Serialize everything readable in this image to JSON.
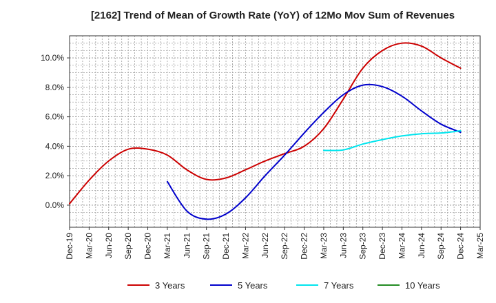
{
  "chart_data": {
    "type": "line",
    "title": "[2162]  Trend of Mean of Growth Rate (YoY) of 12Mo Mov Sum of Revenues",
    "xlabel": "",
    "ylabel": "",
    "ylim": [
      -1.5,
      11.5
    ],
    "y_ticks": [
      0,
      2,
      4,
      6,
      8,
      10
    ],
    "y_tick_labels": [
      "0.0%",
      "2.0%",
      "4.0%",
      "6.0%",
      "8.0%",
      "10.0%"
    ],
    "x_tick_labels": [
      "Dec-19",
      "Mar-20",
      "Jun-20",
      "Sep-20",
      "Dec-20",
      "Mar-21",
      "Jun-21",
      "Sep-21",
      "Dec-21",
      "Mar-22",
      "Jun-22",
      "Sep-22",
      "Dec-22",
      "Mar-23",
      "Jun-23",
      "Sep-23",
      "Dec-23",
      "Mar-24",
      "Jun-24",
      "Sep-24",
      "Dec-24",
      "Mar-25"
    ],
    "grid": true,
    "legend_position": "bottom",
    "series": [
      {
        "name": "3 Years",
        "color": "#cc0000",
        "points": [
          [
            0,
            0.1
          ],
          [
            1,
            1.7
          ],
          [
            2,
            3.0
          ],
          [
            3,
            3.8
          ],
          [
            4,
            3.8
          ],
          [
            5,
            3.4
          ],
          [
            6,
            2.4
          ],
          [
            7,
            1.75
          ],
          [
            8,
            1.85
          ],
          [
            9,
            2.4
          ],
          [
            10,
            3.0
          ],
          [
            11,
            3.5
          ],
          [
            12,
            4.0
          ],
          [
            13,
            5.2
          ],
          [
            14,
            7.2
          ],
          [
            15,
            9.3
          ],
          [
            16,
            10.5
          ],
          [
            17,
            11.0
          ],
          [
            18,
            10.8
          ],
          [
            19,
            10.0
          ],
          [
            20,
            9.3
          ]
        ]
      },
      {
        "name": "5 Years",
        "color": "#0000cc",
        "points": [
          [
            5,
            1.6
          ],
          [
            6,
            -0.4
          ],
          [
            7,
            -0.95
          ],
          [
            8,
            -0.6
          ],
          [
            9,
            0.5
          ],
          [
            10,
            2.0
          ],
          [
            11,
            3.4
          ],
          [
            12,
            4.9
          ],
          [
            13,
            6.3
          ],
          [
            14,
            7.5
          ],
          [
            15,
            8.15
          ],
          [
            16,
            8.05
          ],
          [
            17,
            7.4
          ],
          [
            18,
            6.4
          ],
          [
            19,
            5.5
          ],
          [
            20,
            4.95
          ]
        ]
      },
      {
        "name": "7 Years",
        "color": "#00e5ee",
        "points": [
          [
            13,
            3.72
          ],
          [
            14,
            3.75
          ],
          [
            15,
            4.15
          ],
          [
            16,
            4.45
          ],
          [
            17,
            4.7
          ],
          [
            18,
            4.85
          ],
          [
            19,
            4.9
          ],
          [
            20,
            5.05
          ]
        ]
      },
      {
        "name": "10 Years",
        "color": "#228b22",
        "points": []
      }
    ]
  }
}
